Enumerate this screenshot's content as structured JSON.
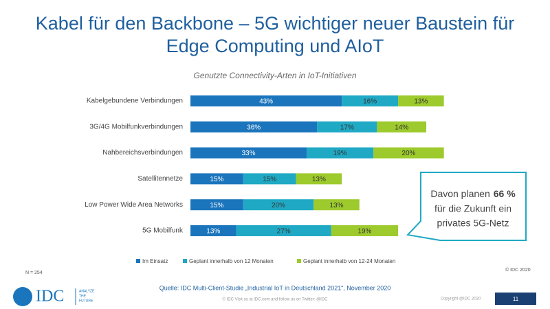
{
  "chart_data": {
    "type": "bar",
    "orientation": "horizontal",
    "stacked": true,
    "title": "Kabel für den Backbone – 5G wichtiger neuer Baustein für",
    "title_line2": "Edge Computing und AIoT",
    "subtitle": "Genutzte Connectivity-Arten in IoT-Initiativen",
    "categories": [
      "Kabelgebundene Verbindungen",
      "3G/4G Mobilfunkverbindungen",
      "Nahbereichsverbindungen",
      "Satellitennetze",
      "Low Power Wide Area Networks",
      "5G Mobilfunk"
    ],
    "series": [
      {
        "name": "Im Einsatz",
        "color": "#1b75bc",
        "values": [
          43,
          36,
          33,
          15,
          15,
          13
        ],
        "value_labels": [
          "43%",
          "36%",
          "33%",
          "15%",
          "15%",
          "13%"
        ]
      },
      {
        "name": "Geplant innerhalb von 12 Monaten",
        "color": "#1fa9c4",
        "values": [
          16,
          17,
          19,
          15,
          20,
          27
        ],
        "value_labels": [
          "16%",
          "17%",
          "19%",
          "15%",
          "20%",
          "27%"
        ]
      },
      {
        "name": "Geplant innerhalb von 12-24 Monaten",
        "color": "#9dca2c",
        "values": [
          13,
          14,
          20,
          13,
          13,
          19
        ],
        "value_labels": [
          "13%",
          "14%",
          "20%",
          "13%",
          "13%",
          "19%"
        ]
      }
    ],
    "legend": "bottom",
    "note": "N = 254",
    "copyright": "© IDC 2020",
    "source": "Quelle: IDC Multi-Client-Studie „Industrial IoT in Deutschland 2021“, November 2020"
  },
  "callout": {
    "pre": "Davon planen",
    "highlight": "66 %",
    "line2": "für die Zukunft ein",
    "line3": "privates 5G-Netz"
  },
  "footer": {
    "logo": "IDC",
    "tagline": [
      "ANALYZE",
      "THE",
      "FUTURE"
    ],
    "text": "© IDC   Visit us at IDC.com and follow us on Twitter: @IDC",
    "copyright": "Copyright @IDC 2020",
    "page": "11"
  }
}
